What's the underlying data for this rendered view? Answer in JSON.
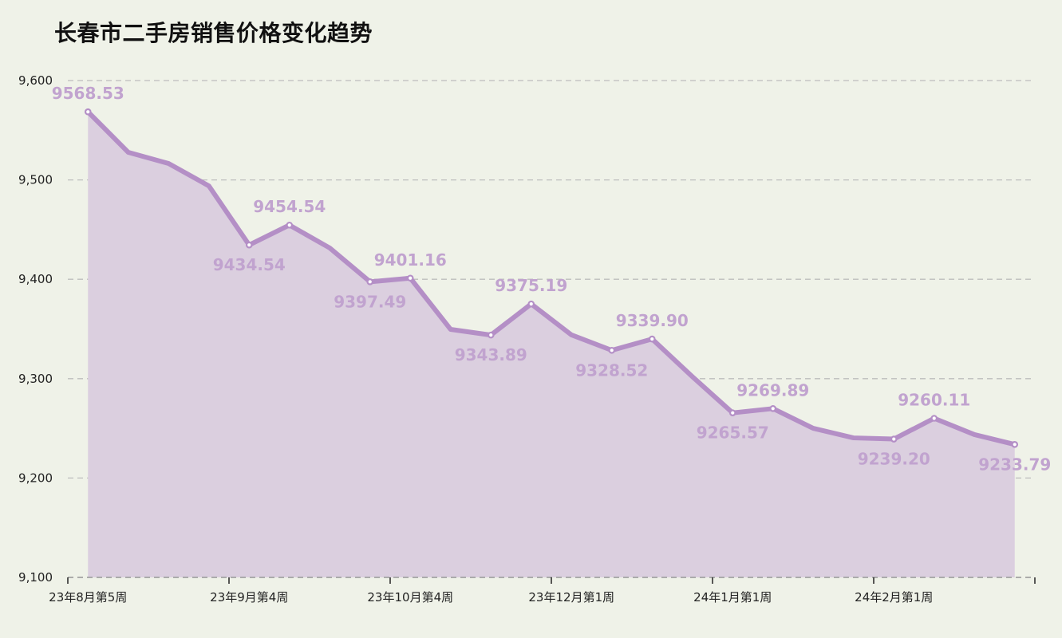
{
  "chart_data": {
    "type": "area",
    "title": "长春市二手房销售价格变化趋势",
    "xlabel": "",
    "ylabel": "",
    "ylim": [
      9100,
      9600
    ],
    "yticks": [
      9100,
      9200,
      9300,
      9400,
      9500,
      9600
    ],
    "ytick_labels": [
      "9,100",
      "9,200",
      "9,300",
      "9,400",
      "9,500",
      "9,600"
    ],
    "grid": {
      "y": true,
      "x": false,
      "style": "dashed"
    },
    "legend": null,
    "x_tick_labels": [
      {
        "index": 0,
        "label": "23年8月第5周"
      },
      {
        "index": 4,
        "label": "23年9月第4周"
      },
      {
        "index": 8,
        "label": "23年10月第4周"
      },
      {
        "index": 12,
        "label": "23年12月第1周"
      },
      {
        "index": 16,
        "label": "24年1月第1周"
      },
      {
        "index": 20,
        "label": "24年2月第1周"
      }
    ],
    "series": [
      {
        "name": "二手房销售价格",
        "color": "#b48fc6",
        "fill": "#dbcfdf",
        "values": [
          9568.53,
          9527.8,
          9516.5,
          9494.0,
          9434.54,
          9454.54,
          9431.5,
          9397.49,
          9401.16,
          9349.6,
          9343.89,
          9375.19,
          9344.0,
          9328.52,
          9339.9,
          9302.0,
          9265.57,
          9269.89,
          9250.0,
          9240.4,
          9239.2,
          9260.11,
          9243.7,
          9233.79
        ]
      }
    ],
    "data_labels": [
      {
        "index": 0,
        "text": "9568.53",
        "position": "above"
      },
      {
        "index": 4,
        "text": "9434.54",
        "position": "below"
      },
      {
        "index": 5,
        "text": "9454.54",
        "position": "above"
      },
      {
        "index": 7,
        "text": "9397.49",
        "position": "below"
      },
      {
        "index": 8,
        "text": "9401.16",
        "position": "above"
      },
      {
        "index": 10,
        "text": "9343.89",
        "position": "below"
      },
      {
        "index": 11,
        "text": "9375.19",
        "position": "above"
      },
      {
        "index": 13,
        "text": "9328.52",
        "position": "below"
      },
      {
        "index": 14,
        "text": "9339.90",
        "position": "above"
      },
      {
        "index": 16,
        "text": "9265.57",
        "position": "below"
      },
      {
        "index": 17,
        "text": "9269.89",
        "position": "above"
      },
      {
        "index": 20,
        "text": "9239.20",
        "position": "below"
      },
      {
        "index": 21,
        "text": "9260.11",
        "position": "above"
      },
      {
        "index": 23,
        "text": "9233.79",
        "position": "below"
      }
    ]
  },
  "colors": {
    "background": "#eff2e8",
    "line": "#b48fc6",
    "area": "#dbcfdf",
    "label": "#c1a3cf",
    "grid": "#bdbdbd"
  }
}
